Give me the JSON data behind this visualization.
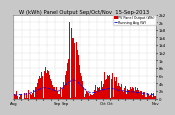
{
  "title": "W (kWh) Panel Output Sep/Oct/Nov  15-Sep-2013",
  "legend_pv": "PV Panel Output (Wh)",
  "legend_avg": "Running Avg (W)",
  "bg_color": "#c8c8c8",
  "plot_bg": "#ffffff",
  "bar_color": "#dd0000",
  "avg_color": "#0000ee",
  "grid_color": "#888888",
  "title_color": "#000000",
  "title_fontsize": 3.8,
  "tick_fontsize": 2.8,
  "legend_fontsize": 2.4,
  "n_bars": 200,
  "y_max": 2200,
  "y_ticks": [
    0,
    200,
    400,
    600,
    800,
    1000,
    1200,
    1400,
    1600,
    1800,
    2000,
    2200
  ],
  "y_tick_labels": [
    "0",
    "2h",
    "4h",
    "6h",
    "8h",
    "1k",
    "1k2",
    "1k4",
    "1k6",
    "1k8",
    "2k",
    "2k2"
  ]
}
